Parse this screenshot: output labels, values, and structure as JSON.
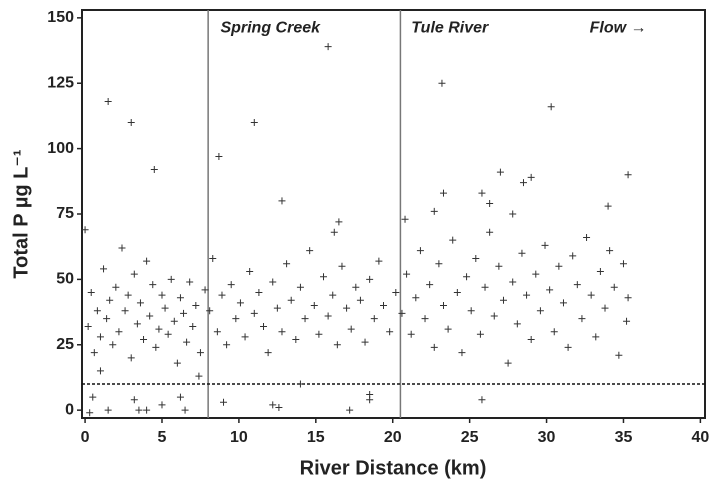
{
  "chart_data": {
    "type": "scatter",
    "xlabel": "River Distance (km)",
    "ylabel": "Total P µg L⁻¹",
    "xlim": [
      -0.2,
      40.3
    ],
    "ylim": [
      -3,
      153
    ],
    "xticks": [
      0,
      5,
      10,
      15,
      20,
      25,
      30,
      35,
      40
    ],
    "yticks": [
      0,
      25,
      50,
      75,
      100,
      125,
      150
    ],
    "vlines": [
      8,
      20.5
    ],
    "hline": 10,
    "annotations": [
      {
        "text": "Spring Creek",
        "x": 8.8,
        "y": 146
      },
      {
        "text": "Tule River",
        "x": 21.2,
        "y": 146
      },
      {
        "text": "Flow →",
        "x": 32.8,
        "y": 146
      }
    ],
    "color": "#333333",
    "x": [
      1.5,
      3,
      4.5,
      8.7,
      11,
      12.8,
      15.8,
      16.2,
      16.5,
      23.2,
      23.3,
      22.7,
      25.8,
      27,
      28.5,
      29,
      30.3,
      35.3,
      34,
      0,
      27.8,
      26.3,
      20.8,
      0.3,
      0.5,
      1.5,
      3.5,
      4,
      5,
      6.5,
      6.2,
      12.2,
      12.6,
      17.2,
      18.5,
      18.5,
      14,
      25.8,
      9,
      7.4,
      3.2,
      1,
      0.2,
      0.4,
      0.6,
      0.8,
      1.0,
      1.2,
      1.4,
      1.6,
      1.8,
      2.0,
      2.2,
      2.4,
      2.6,
      2.8,
      3.0,
      3.2,
      3.4,
      3.6,
      3.8,
      4.0,
      4.2,
      4.4,
      4.6,
      4.8,
      5.0,
      5.2,
      5.4,
      5.6,
      5.8,
      6.0,
      6.2,
      6.4,
      6.6,
      6.8,
      7.0,
      7.2,
      7.5,
      7.8,
      8.1,
      8.3,
      8.6,
      8.9,
      9.2,
      9.5,
      9.8,
      10.1,
      10.4,
      10.7,
      11.0,
      11.3,
      11.6,
      11.9,
      12.2,
      12.5,
      12.8,
      13.1,
      13.4,
      13.7,
      14.0,
      14.3,
      14.6,
      14.9,
      15.2,
      15.5,
      15.8,
      16.1,
      16.4,
      16.7,
      17.0,
      17.3,
      17.6,
      17.9,
      18.2,
      18.5,
      18.8,
      19.1,
      19.4,
      19.8,
      20.2,
      20.6,
      20.9,
      21.2,
      21.5,
      21.8,
      22.1,
      22.4,
      22.7,
      23.0,
      23.3,
      23.6,
      23.9,
      24.2,
      24.5,
      24.8,
      25.1,
      25.4,
      25.7,
      26.0,
      26.3,
      26.6,
      26.9,
      27.2,
      27.5,
      27.8,
      28.1,
      28.4,
      28.7,
      29.0,
      29.3,
      29.6,
      29.9,
      30.2,
      30.5,
      30.8,
      31.1,
      31.4,
      31.7,
      32.0,
      32.3,
      32.6,
      32.9,
      33.2,
      33.5,
      33.8,
      34.1,
      34.4,
      34.7,
      35.0,
      35.2,
      35.3
    ],
    "y": [
      118,
      110,
      92,
      97,
      110,
      80,
      139,
      68,
      72,
      125,
      83,
      76,
      83,
      91,
      87,
      89,
      116,
      90,
      78,
      69,
      75,
      79,
      73,
      -1,
      5,
      0,
      0,
      0,
      2,
      0,
      5,
      2,
      1,
      0,
      6,
      4,
      10,
      4,
      3,
      13,
      4,
      15,
      32,
      45,
      22,
      38,
      28,
      54,
      35,
      42,
      25,
      47,
      30,
      62,
      38,
      44,
      20,
      52,
      33,
      41,
      27,
      57,
      36,
      48,
      24,
      31,
      44,
      39,
      29,
      50,
      34,
      18,
      43,
      37,
      26,
      49,
      32,
      40,
      22,
      46,
      38,
      58,
      30,
      44,
      25,
      48,
      35,
      41,
      28,
      53,
      37,
      45,
      32,
      22,
      49,
      39,
      30,
      56,
      42,
      27,
      47,
      35,
      61,
      40,
      29,
      51,
      36,
      44,
      25,
      55,
      39,
      31,
      47,
      42,
      26,
      50,
      35,
      57,
      40,
      30,
      45,
      37,
      52,
      29,
      43,
      61,
      35,
      48,
      24,
      56,
      40,
      31,
      65,
      45,
      22,
      51,
      38,
      58,
      29,
      47,
      68,
      36,
      55,
      42,
      18,
      49,
      33,
      60,
      44,
      27,
      52,
      38,
      63,
      46,
      30,
      55,
      41,
      24,
      59,
      48,
      35,
      66,
      44,
      28,
      53,
      39,
      61,
      47,
      21,
      56,
      34,
      43
    ]
  }
}
